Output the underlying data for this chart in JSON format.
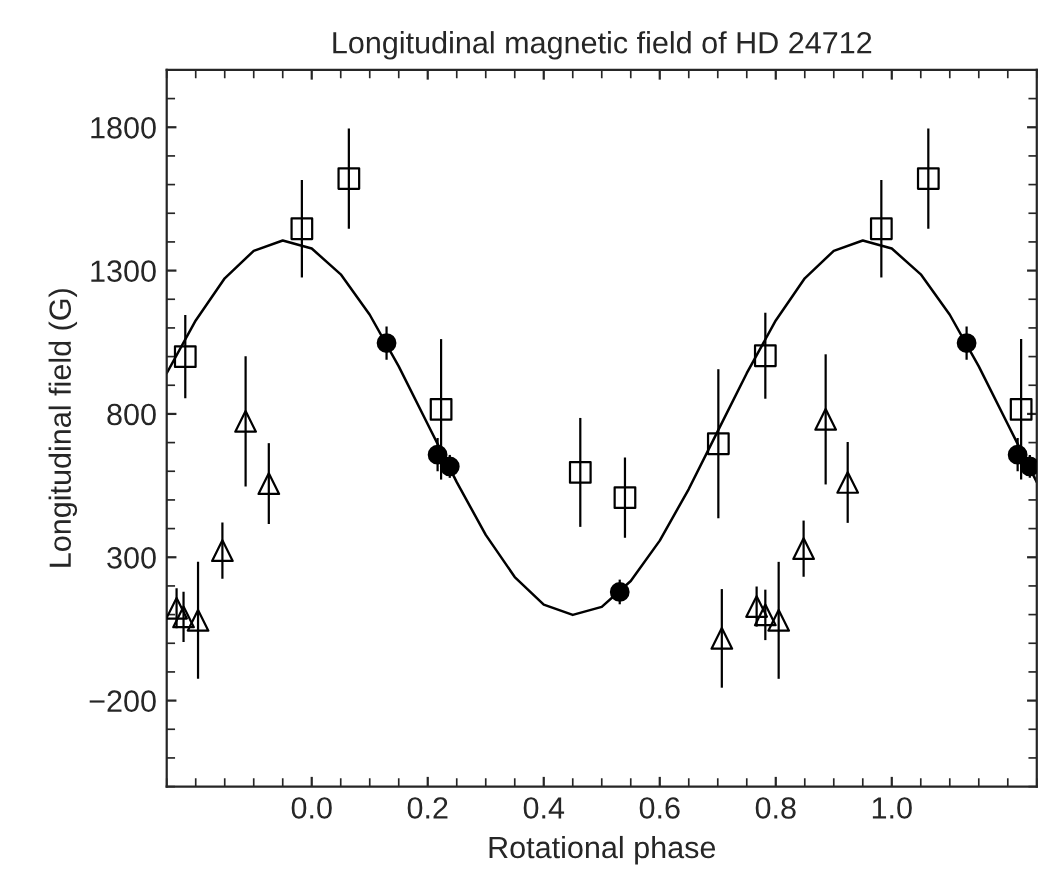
{
  "chart_data": {
    "type": "scatter",
    "title": "Longitudinal magnetic field of HD 24712",
    "xlabel": "Rotational phase",
    "ylabel": "Longitudinal field (G)",
    "xlim": [
      -0.25,
      1.25
    ],
    "xticks": [
      {
        "value": 0,
        "label": "0.0"
      },
      {
        "value": 0.2,
        "label": "0.2"
      },
      {
        "value": 0.4,
        "label": "0.4"
      },
      {
        "value": 0.6,
        "label": "0.6"
      },
      {
        "value": 0.8,
        "label": "0.8"
      },
      {
        "value": 1.0,
        "label": "1.0"
      }
    ],
    "ylim": [
      -500,
      2000
    ],
    "yticks": [
      {
        "value": -200,
        "label": "−200"
      },
      300,
      800,
      1300,
      1800
    ],
    "grid": false,
    "legend": false,
    "series": [
      {
        "type": "line",
        "color": "#000000",
        "marker": "none",
        "line_style": "solid",
        "x": [
          -0.25,
          -0.2,
          -0.15,
          -0.1,
          -0.05,
          0.0,
          0.05,
          0.1,
          0.15,
          0.2,
          0.25,
          0.3,
          0.35,
          0.4,
          0.45,
          0.5,
          0.55,
          0.6,
          0.65,
          0.7,
          0.75,
          0.8,
          0.85,
          0.9,
          0.95,
          1.0,
          1.05,
          1.1,
          1.15,
          1.2,
          1.25
        ],
        "values": [
          942,
          1126,
          1273,
          1369,
          1405,
          1377,
          1287,
          1146,
          966,
          764,
          562,
          378,
          231,
          135,
          99,
          127,
          217,
          358,
          538,
          740,
          942,
          1126,
          1273,
          1369,
          1405,
          1377,
          1287,
          1146,
          966,
          764,
          562
        ]
      },
      {
        "color": "#000000",
        "marker": "square",
        "x": [
          -0.218,
          -0.017,
          0.064,
          0.223,
          0.463,
          0.54,
          0.701,
          0.782,
          0.982,
          1.063,
          1.223
        ],
        "values": [
          1000,
          1446,
          1621,
          816,
          596,
          508,
          696,
          1003,
          1446,
          1621,
          816
        ],
        "errors": [
          145,
          170,
          175,
          245,
          190,
          140,
          260,
          150,
          170,
          175,
          245
        ]
      },
      {
        "color": "#000000",
        "marker": "circle",
        "x": [
          0.129,
          0.217,
          0.238,
          0.531,
          1.129,
          1.217,
          1.238
        ],
        "values": [
          1047,
          658,
          617,
          179,
          1047,
          658,
          617
        ],
        "errors": [
          58,
          58,
          40,
          43,
          58,
          58,
          40
        ]
      },
      {
        "color": "#000000",
        "marker": "triangle",
        "x": [
          -0.233,
          -0.221,
          -0.196,
          -0.154,
          -0.114,
          -0.074,
          0.707,
          0.767,
          0.782,
          0.805,
          0.848,
          0.886,
          0.924
        ],
        "values": [
          122,
          92,
          80,
          323,
          774,
          557,
          17,
          128,
          99,
          80,
          330,
          781,
          561
        ],
        "errors": [
          70,
          88,
          204,
          98,
          227,
          141,
          172,
          70,
          88,
          204,
          98,
          227,
          141
        ]
      }
    ]
  }
}
